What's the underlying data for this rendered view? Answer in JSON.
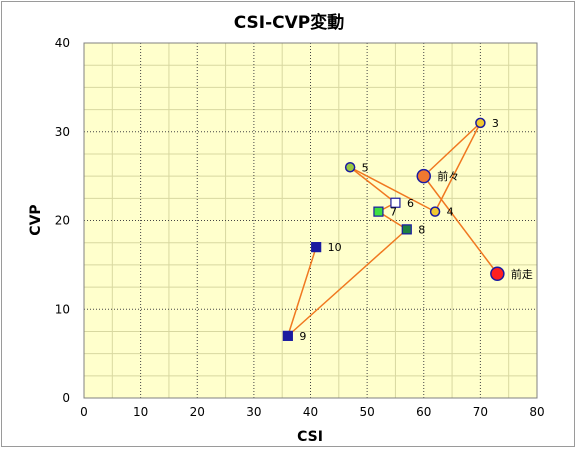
{
  "chart_data": {
    "type": "scatter",
    "title": "CSI-CVP変動",
    "xlabel": "CSI",
    "ylabel": "CVP",
    "xlim": [
      0,
      80
    ],
    "ylim": [
      0,
      40
    ],
    "x_ticks": [
      0,
      10,
      20,
      30,
      40,
      50,
      60,
      70,
      80
    ],
    "y_ticks": [
      0,
      10,
      20,
      30,
      40
    ],
    "grid": true,
    "colors": {
      "plot_bg": "#ffffcc",
      "line": "#f07820",
      "grid_dotted": "#444444",
      "grid_minor": "#d8d8a0"
    },
    "points": [
      {
        "label": "前走",
        "x": 73,
        "y": 14,
        "shape": "circle",
        "fill": "#ff2020",
        "stroke": "#1a1aa0",
        "size": "large"
      },
      {
        "label": "前々",
        "x": 60,
        "y": 25,
        "shape": "circle",
        "fill": "#f07830",
        "stroke": "#1a1aa0",
        "size": "large"
      },
      {
        "label": "3",
        "x": 70,
        "y": 31,
        "shape": "circle",
        "fill": "#f0c830",
        "stroke": "#1a1aa0",
        "size": "small"
      },
      {
        "label": "4",
        "x": 62,
        "y": 21,
        "shape": "circle",
        "fill": "#f0c830",
        "stroke": "#1a1aa0",
        "size": "small"
      },
      {
        "label": "5",
        "x": 47,
        "y": 26,
        "shape": "circle",
        "fill": "#98c840",
        "stroke": "#1a1aa0",
        "size": "small"
      },
      {
        "label": "6",
        "x": 55,
        "y": 22,
        "shape": "square",
        "fill": "#ffffff",
        "stroke": "#1a1aa0",
        "size": "small"
      },
      {
        "label": "7",
        "x": 52,
        "y": 21,
        "shape": "square",
        "fill": "#40e040",
        "stroke": "#1a1aa0",
        "size": "small"
      },
      {
        "label": "8",
        "x": 57,
        "y": 19,
        "shape": "square",
        "fill": "#208040",
        "stroke": "#1a1aa0",
        "size": "small"
      },
      {
        "label": "9",
        "x": 36,
        "y": 7,
        "shape": "square",
        "fill": "#1a1aa0",
        "stroke": "#1a1aa0",
        "size": "small"
      },
      {
        "label": "10",
        "x": 41,
        "y": 17,
        "shape": "square",
        "fill": "#1a1aa0",
        "stroke": "#1a1aa0",
        "size": "small"
      }
    ]
  }
}
